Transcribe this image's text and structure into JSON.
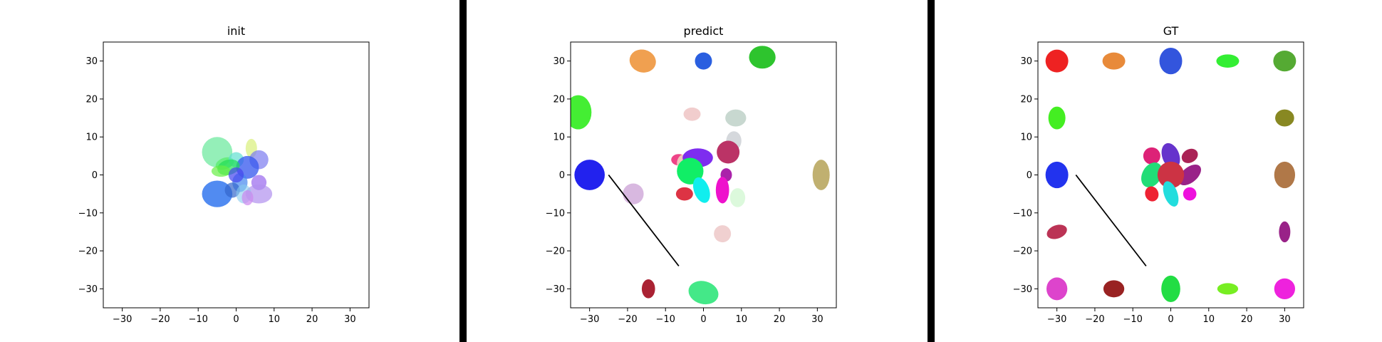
{
  "colors": {
    "frame": "#000000",
    "separator": "#000000",
    "background": "#ffffff"
  },
  "chart_data": [
    {
      "type": "scatter",
      "title": "init",
      "xlim": [
        -35,
        35
      ],
      "ylim": [
        -35,
        35
      ],
      "xticks": [
        -30,
        -20,
        -10,
        0,
        10,
        20,
        30
      ],
      "yticks": [
        -30,
        -20,
        -10,
        0,
        10,
        20,
        30
      ],
      "grid": false,
      "line": [],
      "ellipses": [
        {
          "x": -5,
          "y": 6,
          "w": 8,
          "h": 8,
          "angle": 0,
          "color": "#66e89a",
          "alpha": 0.7
        },
        {
          "x": 4,
          "y": 7,
          "w": 3,
          "h": 5,
          "angle": 0,
          "color": "#d8f07a",
          "alpha": 0.7
        },
        {
          "x": -3,
          "y": 3,
          "w": 5,
          "h": 3,
          "angle": 20,
          "color": "#55ee66",
          "alpha": 0.7
        },
        {
          "x": 0,
          "y": 4,
          "w": 4,
          "h": 4,
          "angle": 0,
          "color": "#60e0d0",
          "alpha": 0.7
        },
        {
          "x": 6,
          "y": 4,
          "w": 5,
          "h": 5,
          "angle": 0,
          "color": "#7a7af0",
          "alpha": 0.7
        },
        {
          "x": 3,
          "y": 2,
          "w": 6,
          "h": 6,
          "angle": 0,
          "color": "#3355ee",
          "alpha": 0.75
        },
        {
          "x": -2,
          "y": 2,
          "w": 6,
          "h": 4,
          "angle": 15,
          "color": "#22dd55",
          "alpha": 0.7
        },
        {
          "x": -4,
          "y": 1,
          "w": 5,
          "h": 3,
          "angle": 0,
          "color": "#66ee44",
          "alpha": 0.7
        },
        {
          "x": 1,
          "y": -2,
          "w": 4,
          "h": 5,
          "angle": 0,
          "color": "#4488ee",
          "alpha": 0.7
        },
        {
          "x": 6,
          "y": -2,
          "w": 4,
          "h": 4,
          "angle": 0,
          "color": "#9966ee",
          "alpha": 0.7
        },
        {
          "x": -5,
          "y": -5,
          "w": 8,
          "h": 7,
          "angle": 0,
          "color": "#3377ee",
          "alpha": 0.85
        },
        {
          "x": -1,
          "y": -4,
          "w": 4,
          "h": 4,
          "angle": 0,
          "color": "#3366cc",
          "alpha": 0.7
        },
        {
          "x": 6,
          "y": -5,
          "w": 7,
          "h": 5,
          "angle": 0,
          "color": "#b090ee",
          "alpha": 0.7
        },
        {
          "x": 2,
          "y": -5,
          "w": 4,
          "h": 5,
          "angle": 0,
          "color": "#88ccee",
          "alpha": 0.6
        },
        {
          "x": 3,
          "y": -6,
          "w": 3,
          "h": 4,
          "angle": 0,
          "color": "#cc88ee",
          "alpha": 0.7
        },
        {
          "x": 0,
          "y": 0,
          "w": 4,
          "h": 4,
          "angle": 0,
          "color": "#4444ee",
          "alpha": 0.7
        }
      ]
    },
    {
      "type": "scatter",
      "title": "predict",
      "xlim": [
        -35,
        35
      ],
      "ylim": [
        -35,
        35
      ],
      "xticks": [
        -30,
        -20,
        -10,
        0,
        10,
        20,
        30
      ],
      "yticks": [
        -30,
        -20,
        -10,
        0,
        10,
        20,
        30
      ],
      "grid": false,
      "line": [
        [
          -25,
          0
        ],
        [
          -6.5,
          -24
        ]
      ],
      "ellipses": [
        {
          "x": -16,
          "y": 30,
          "w": 7,
          "h": 6,
          "angle": -15,
          "color": "#f0a050",
          "alpha": 1
        },
        {
          "x": 0,
          "y": 30,
          "w": 4.5,
          "h": 4.5,
          "angle": -20,
          "color": "#2a5fe0",
          "alpha": 1
        },
        {
          "x": 15.5,
          "y": 31,
          "w": 7,
          "h": 6,
          "angle": 0,
          "color": "#2ec42e",
          "alpha": 1
        },
        {
          "x": -33,
          "y": 16.5,
          "w": 7,
          "h": 9,
          "angle": 0,
          "color": "#44ee33",
          "alpha": 1
        },
        {
          "x": -30,
          "y": 0,
          "w": 8,
          "h": 8,
          "angle": 0,
          "color": "#2222ee",
          "alpha": 1
        },
        {
          "x": 31,
          "y": 0,
          "w": 4.5,
          "h": 8,
          "angle": 0,
          "color": "#c0b070",
          "alpha": 1
        },
        {
          "x": -3,
          "y": 16,
          "w": 4.5,
          "h": 3.5,
          "angle": 0,
          "color": "#f0c8c8",
          "alpha": 0.9
        },
        {
          "x": 8.5,
          "y": 15,
          "w": 5.5,
          "h": 4.5,
          "angle": 0,
          "color": "#c8d8d0",
          "alpha": 1
        },
        {
          "x": 8,
          "y": 9,
          "w": 4,
          "h": 5,
          "angle": 0,
          "color": "#d0d4d8",
          "alpha": 0.9
        },
        {
          "x": 6.5,
          "y": 6,
          "w": 6,
          "h": 6,
          "angle": 0,
          "color": "#bb3366",
          "alpha": 1
        },
        {
          "x": -6.5,
          "y": 4,
          "w": 4,
          "h": 3,
          "angle": 0,
          "color": "#ee4488",
          "alpha": 1
        },
        {
          "x": -5,
          "y": 3,
          "w": 4,
          "h": 5,
          "angle": 0,
          "color": "#f0e4c8",
          "alpha": 0.8
        },
        {
          "x": -1.5,
          "y": 4.5,
          "w": 8,
          "h": 5,
          "angle": 0,
          "color": "#7722ee",
          "alpha": 0.95
        },
        {
          "x": -3.5,
          "y": 1,
          "w": 7,
          "h": 7,
          "angle": 0,
          "color": "#11ee66",
          "alpha": 1
        },
        {
          "x": 6,
          "y": 0,
          "w": 3,
          "h": 3.5,
          "angle": 0,
          "color": "#aa22aa",
          "alpha": 1
        },
        {
          "x": -18.5,
          "y": -5,
          "w": 5.5,
          "h": 5.5,
          "angle": 0,
          "color": "#d8b8e0",
          "alpha": 1
        },
        {
          "x": -5,
          "y": -5,
          "w": 4.5,
          "h": 3.5,
          "angle": 0,
          "color": "#dd3344",
          "alpha": 1
        },
        {
          "x": -0.5,
          "y": -4,
          "w": 4,
          "h": 7,
          "angle": 20,
          "color": "#11eeee",
          "alpha": 1
        },
        {
          "x": 5,
          "y": -4,
          "w": 3.5,
          "h": 7,
          "angle": 0,
          "color": "#ee11cc",
          "alpha": 1
        },
        {
          "x": 9,
          "y": -6,
          "w": 4,
          "h": 5,
          "angle": 0,
          "color": "#d8f8d8",
          "alpha": 0.9
        },
        {
          "x": 5,
          "y": -15.5,
          "w": 4.5,
          "h": 4.5,
          "angle": 0,
          "color": "#f0d0d0",
          "alpha": 1
        },
        {
          "x": -14.5,
          "y": -30,
          "w": 3.5,
          "h": 5,
          "angle": 0,
          "color": "#aa2233",
          "alpha": 1
        },
        {
          "x": 0,
          "y": -31,
          "w": 8,
          "h": 6,
          "angle": -15,
          "color": "#44e888",
          "alpha": 1
        }
      ]
    },
    {
      "type": "scatter",
      "title": "GT",
      "xlim": [
        -35,
        35
      ],
      "ylim": [
        -35,
        35
      ],
      "xticks": [
        -30,
        -20,
        -10,
        0,
        10,
        20,
        30
      ],
      "yticks": [
        -30,
        -20,
        -10,
        0,
        10,
        20,
        30
      ],
      "grid": false,
      "line": [
        [
          -25,
          0
        ],
        [
          -6.5,
          -24
        ]
      ],
      "ellipses": [
        {
          "x": -30,
          "y": 30,
          "w": 6,
          "h": 6,
          "angle": 0,
          "color": "#ee2222",
          "alpha": 1
        },
        {
          "x": -15,
          "y": 30,
          "w": 6,
          "h": 4.5,
          "angle": 0,
          "color": "#e88a3a",
          "alpha": 1
        },
        {
          "x": 0,
          "y": 30,
          "w": 6,
          "h": 7,
          "angle": 0,
          "color": "#3355dd",
          "alpha": 1
        },
        {
          "x": 15,
          "y": 30,
          "w": 6,
          "h": 3.5,
          "angle": 0,
          "color": "#33ee33",
          "alpha": 1
        },
        {
          "x": 30,
          "y": 30,
          "w": 6,
          "h": 5.5,
          "angle": 0,
          "color": "#55aa33",
          "alpha": 1
        },
        {
          "x": -30,
          "y": 15,
          "w": 4.5,
          "h": 6,
          "angle": 0,
          "color": "#44ee22",
          "alpha": 1
        },
        {
          "x": 30,
          "y": 15,
          "w": 5,
          "h": 4.5,
          "angle": 0,
          "color": "#888822",
          "alpha": 1
        },
        {
          "x": -30,
          "y": 0,
          "w": 6,
          "h": 7,
          "angle": 0,
          "color": "#2233ee",
          "alpha": 1
        },
        {
          "x": 30,
          "y": 0,
          "w": 5.5,
          "h": 7,
          "angle": 0,
          "color": "#b07848",
          "alpha": 1
        },
        {
          "x": -30,
          "y": -15,
          "w": 5.5,
          "h": 3.5,
          "angle": 20,
          "color": "#bb3355",
          "alpha": 1
        },
        {
          "x": 30,
          "y": -15,
          "w": 3,
          "h": 5.5,
          "angle": 0,
          "color": "#992288",
          "alpha": 1
        },
        {
          "x": -30,
          "y": -30,
          "w": 5.5,
          "h": 6,
          "angle": 0,
          "color": "#dd44cc",
          "alpha": 1
        },
        {
          "x": -15,
          "y": -30,
          "w": 5.5,
          "h": 4.5,
          "angle": 0,
          "color": "#992222",
          "alpha": 1
        },
        {
          "x": 0,
          "y": -30,
          "w": 5,
          "h": 7,
          "angle": 0,
          "color": "#22dd44",
          "alpha": 1
        },
        {
          "x": 15,
          "y": -30,
          "w": 5.5,
          "h": 3,
          "angle": 0,
          "color": "#77ee22",
          "alpha": 1
        },
        {
          "x": 30,
          "y": -30,
          "w": 5.5,
          "h": 5.5,
          "angle": 0,
          "color": "#ee22dd",
          "alpha": 1
        },
        {
          "x": 0,
          "y": 5,
          "w": 4.5,
          "h": 7,
          "angle": 20,
          "color": "#6633cc",
          "alpha": 1
        },
        {
          "x": -5,
          "y": 5,
          "w": 4.5,
          "h": 4.5,
          "angle": 0,
          "color": "#dd2277",
          "alpha": 1
        },
        {
          "x": 5,
          "y": 5,
          "w": 4.5,
          "h": 3.5,
          "angle": 30,
          "color": "#aa2255",
          "alpha": 1
        },
        {
          "x": -5,
          "y": 0,
          "w": 5,
          "h": 7,
          "angle": -30,
          "color": "#22dd77",
          "alpha": 1
        },
        {
          "x": 5,
          "y": 0,
          "w": 4,
          "h": 7,
          "angle": -50,
          "color": "#992288",
          "alpha": 1
        },
        {
          "x": 0,
          "y": 0,
          "w": 7,
          "h": 7,
          "angle": 0,
          "color": "#cc3344",
          "alpha": 1
        },
        {
          "x": -5,
          "y": -5,
          "w": 3.5,
          "h": 4,
          "angle": 20,
          "color": "#ee2233",
          "alpha": 1
        },
        {
          "x": 0,
          "y": -5,
          "w": 3.5,
          "h": 7,
          "angle": 20,
          "color": "#22dddd",
          "alpha": 1
        },
        {
          "x": 5,
          "y": -5,
          "w": 3.5,
          "h": 3.5,
          "angle": 0,
          "color": "#ee11dd",
          "alpha": 1
        }
      ]
    }
  ]
}
